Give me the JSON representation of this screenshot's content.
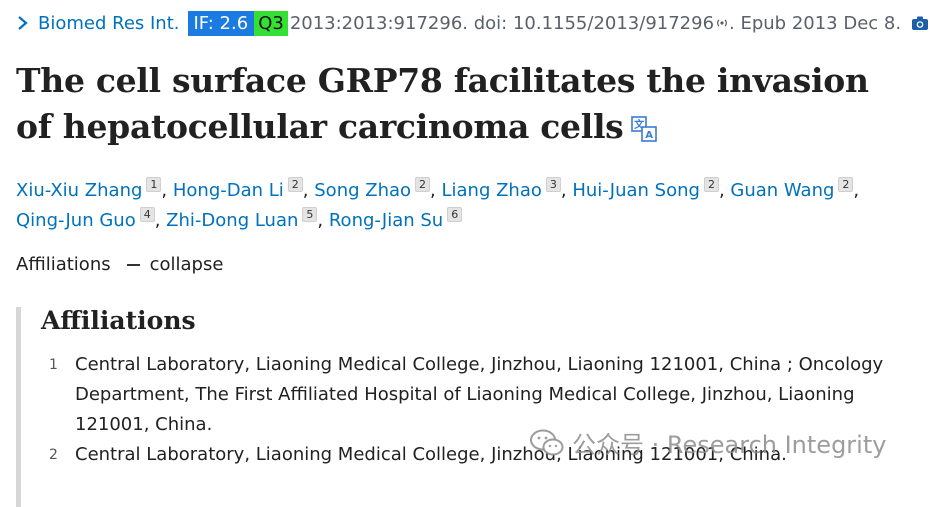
{
  "citation": {
    "journal": "Biomed Res Int.",
    "if_badge": "IF: 2.6",
    "quartile_badge": "Q3",
    "citation_text": "2013:2013:917296. doi: 10.1155/2013/917296",
    "epub_text": ". Epub 2013 Dec 8.",
    "colors": {
      "link": "#0071bc",
      "if_badge_bg": "#1b7be0",
      "quartile_badge_bg": "#35e035"
    }
  },
  "title": "The cell surface GRP78 facilitates the invasion of hepatocellular carcinoma cells",
  "authors": [
    {
      "name": "Xiu-Xiu Zhang",
      "aff": "1"
    },
    {
      "name": "Hong-Dan Li",
      "aff": "2"
    },
    {
      "name": "Song Zhao",
      "aff": "2"
    },
    {
      "name": "Liang Zhao",
      "aff": "3"
    },
    {
      "name": "Hui-Juan Song",
      "aff": "2"
    },
    {
      "name": "Guan Wang",
      "aff": "2"
    },
    {
      "name": "Qing-Jun Guo",
      "aff": "4"
    },
    {
      "name": "Zhi-Dong Luan",
      "aff": "5"
    },
    {
      "name": "Rong-Jian Su",
      "aff": "6"
    }
  ],
  "affiliations_toggle": {
    "label": "Affiliations",
    "action": "collapse"
  },
  "affiliations": {
    "heading": "Affiliations",
    "items": [
      {
        "num": "1",
        "text": "Central Laboratory, Liaoning Medical College, Jinzhou, Liaoning 121001, China ; Oncology Department, The First Affiliated Hospital of Liaoning Medical College, Jinzhou, Liaoning 121001, China."
      },
      {
        "num": "2",
        "text": "Central Laboratory, Liaoning Medical College, Jinzhou, Liaoning 121001, China."
      }
    ]
  },
  "watermark": "公众号 · Research Integrity"
}
